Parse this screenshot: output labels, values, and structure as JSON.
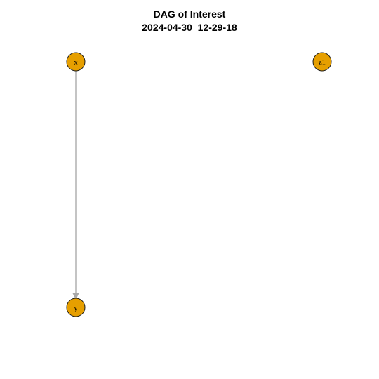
{
  "title": "DAG of Interest",
  "subtitle": "2024-04-30_12-29-18",
  "colors": {
    "node_fill": "#E69F00",
    "node_stroke": "#1a1a1a",
    "edge": "#b0b0b0",
    "label": "#000000"
  },
  "nodes": [
    {
      "id": "x",
      "label": "x"
    },
    {
      "id": "z1",
      "label": "z1"
    },
    {
      "id": "y",
      "label": "y"
    }
  ],
  "edges": [
    {
      "from": "x",
      "to": "y"
    }
  ]
}
